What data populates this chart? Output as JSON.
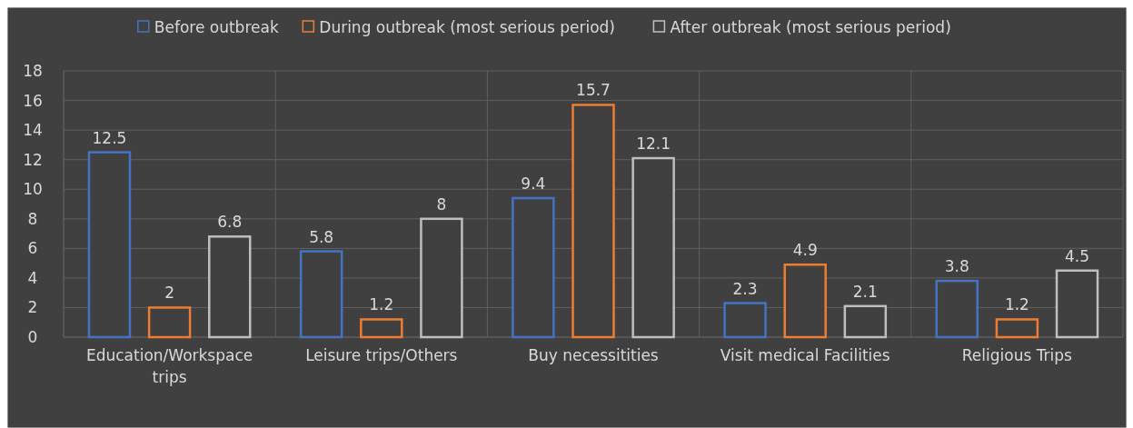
{
  "chart_data": {
    "type": "bar",
    "categories": [
      "Education/Workspace trips",
      "Leisure trips/Others",
      "Buy necessitities",
      "Visit medical Facilities",
      "Religious Trips"
    ],
    "series": [
      {
        "name": "Before outbreak",
        "color": "#4472c4",
        "values": [
          12.5,
          5.8,
          9.4,
          2.3,
          3.8
        ]
      },
      {
        "name": "During outbreak (most serious period)",
        "color": "#ed7d31",
        "values": [
          2,
          1.2,
          15.7,
          4.9,
          1.2
        ]
      },
      {
        "name": "After outbreak (most serious period)",
        "color": "#bfbfbf",
        "values": [
          6.8,
          8,
          12.1,
          2.1,
          4.5
        ]
      }
    ],
    "ylim": [
      0,
      18
    ],
    "yticks": [
      0,
      2,
      4,
      6,
      8,
      10,
      12,
      14,
      16,
      18
    ],
    "grid": true,
    "legend": "top",
    "data_labels": true
  }
}
